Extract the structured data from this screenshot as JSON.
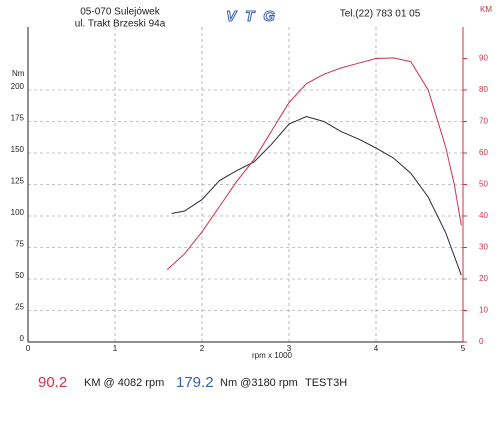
{
  "header": {
    "address1": "05-070 Sulejówek",
    "address2": "ul. Trakt Brzeski 94a",
    "logo": "VTG",
    "phone": "Tel.(22) 783 01 05"
  },
  "chart_data": {
    "type": "line",
    "xlabel": "rpm x 1000",
    "ylabel": "Nm",
    "y2label": "KM",
    "xlim": [
      0,
      5
    ],
    "xticks": [
      0,
      1,
      2,
      3,
      4,
      5
    ],
    "ylim": [
      0,
      250
    ],
    "yticks": [
      0,
      25,
      50,
      75,
      100,
      125,
      150,
      175,
      200
    ],
    "y2lim": [
      0,
      100
    ],
    "y2ticks": [
      0,
      10,
      20,
      30,
      40,
      50,
      60,
      70,
      80,
      90
    ],
    "grid": true,
    "series": [
      {
        "name": "Nm",
        "color": "#2a2a3a",
        "x": [
          1.65,
          1.8,
          2.0,
          2.2,
          2.4,
          2.6,
          2.8,
          3.0,
          3.2,
          3.4,
          3.6,
          3.8,
          4.0,
          4.2,
          4.4,
          4.6,
          4.8,
          4.98
        ],
        "values": [
          102,
          104,
          113,
          128,
          136,
          143,
          157,
          173,
          179,
          175,
          167,
          161,
          154,
          146,
          134,
          115,
          87,
          53
        ]
      },
      {
        "name": "KM",
        "color": "#d0304a",
        "axis": "y2",
        "x": [
          1.6,
          1.8,
          2.0,
          2.2,
          2.4,
          2.6,
          2.8,
          3.0,
          3.2,
          3.4,
          3.6,
          3.8,
          4.0,
          4.2,
          4.4,
          4.6,
          4.8,
          4.9,
          4.98
        ],
        "values": [
          23,
          28,
          35,
          43,
          51,
          58,
          67,
          76,
          82,
          85,
          87,
          88.5,
          90,
          90.2,
          89,
          80,
          62,
          50,
          37
        ]
      }
    ]
  },
  "summary": {
    "max_power": 90.2,
    "power_text": "KM @ 4082 rpm",
    "max_torque": 179.2,
    "torque_text": "Nm @3180 rpm",
    "test": "TEST3H"
  }
}
